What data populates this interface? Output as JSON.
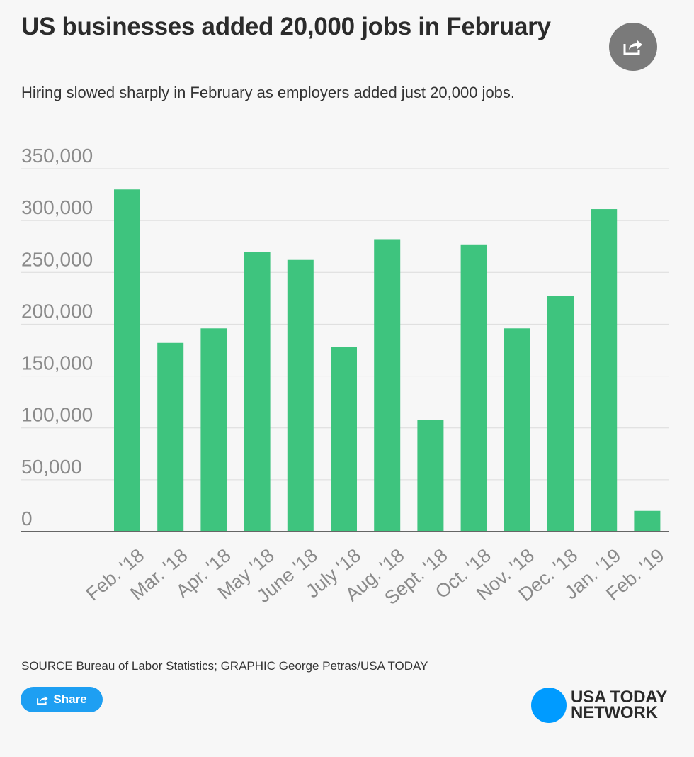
{
  "header": {
    "title": "US businesses added 20,000 jobs in February",
    "subtitle": "Hiring slowed sharply in February as employers added just 20,000 jobs."
  },
  "footer": {
    "source": "SOURCE Bureau of Labor Statistics; GRAPHIC George Petras/USA TODAY",
    "share_label": "Share",
    "logo_line1": "USA TODAY",
    "logo_line2": "NETWORK"
  },
  "colors": {
    "bar": "#3ec47e",
    "grid": "#dcdcdc",
    "axis": "#666666"
  },
  "chart_data": {
    "type": "bar",
    "title": "US businesses added 20,000 jobs in February",
    "xlabel": "",
    "ylabel": "",
    "ylim": [
      0,
      350000
    ],
    "yticks": [
      0,
      50000,
      100000,
      150000,
      200000,
      250000,
      300000,
      350000
    ],
    "ytick_labels": [
      "0",
      "50,000",
      "100,000",
      "150,000",
      "200,000",
      "250,000",
      "300,000",
      "350,000"
    ],
    "categories": [
      "Feb. '18",
      "Mar. '18",
      "Apr. '18",
      "May '18",
      "June '18",
      "July '18",
      "Aug. '18",
      "Sept. '18",
      "Oct. '18",
      "Nov. '18",
      "Dec. '18",
      "Jan. '19",
      "Feb. '19"
    ],
    "values": [
      330000,
      182000,
      196000,
      270000,
      262000,
      178000,
      282000,
      108000,
      277000,
      196000,
      227000,
      311000,
      20000
    ],
    "grid": true
  }
}
